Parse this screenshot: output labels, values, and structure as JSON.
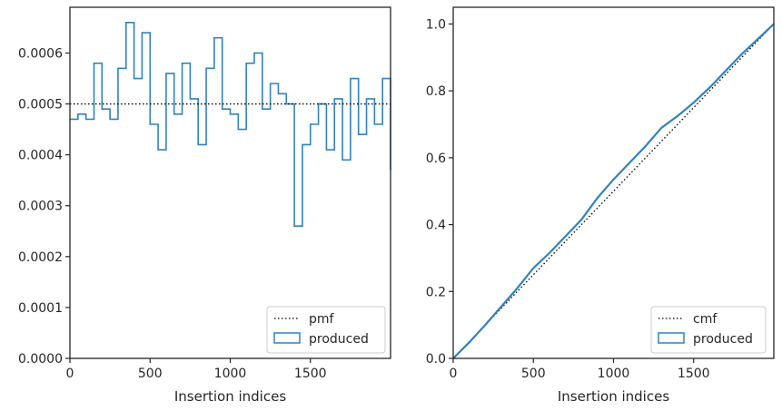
{
  "chart_data": [
    {
      "type": "step",
      "xlabel": "Insertion indices",
      "ylabel": "",
      "xlim": [
        0,
        2000
      ],
      "ylim": [
        0,
        0.00069
      ],
      "xticks": [
        0,
        500,
        1000,
        1500
      ],
      "xtick_labels": [
        "0",
        "500",
        "1000",
        "1500"
      ],
      "yticks": [
        0,
        0.0001,
        0.0002,
        0.0003,
        0.0004,
        0.0005,
        0.0006
      ],
      "ytick_labels": [
        "0.0000",
        "0.0001",
        "0.0002",
        "0.0003",
        "0.0004",
        "0.0005",
        "0.0006"
      ],
      "reference": {
        "name": "pmf",
        "style": "dotted",
        "color": "#000000",
        "value": 0.0005
      },
      "series": [
        {
          "name": "produced",
          "color": "#3182bd",
          "bin_width": 50,
          "bin_edges_start": 0,
          "values": [
            0.00047,
            0.00048,
            0.00047,
            0.00058,
            0.00049,
            0.00047,
            0.00057,
            0.00066,
            0.00055,
            0.00064,
            0.00046,
            0.00041,
            0.00056,
            0.00048,
            0.00058,
            0.00051,
            0.00042,
            0.00057,
            0.00063,
            0.00049,
            0.00048,
            0.00045,
            0.00058,
            0.0006,
            0.00049,
            0.00054,
            0.00052,
            0.0005,
            0.00026,
            0.00042,
            0.00046,
            0.0005,
            0.00041,
            0.00051,
            0.00039,
            0.00055,
            0.00044,
            0.00051,
            0.00046,
            0.00055,
            0.00037
          ]
        }
      ],
      "legend": {
        "placement": "lower-right",
        "entries": [
          "pmf",
          "produced"
        ]
      }
    },
    {
      "type": "line",
      "xlabel": "Insertion indices",
      "ylabel": "",
      "xlim": [
        0,
        2000
      ],
      "ylim": [
        0,
        1.05
      ],
      "xticks": [
        0,
        500,
        1000,
        1500
      ],
      "xtick_labels": [
        "0",
        "500",
        "1000",
        "1500"
      ],
      "yticks": [
        0,
        0.2,
        0.4,
        0.6,
        0.8,
        1.0
      ],
      "ytick_labels": [
        "0.0",
        "0.2",
        "0.4",
        "0.6",
        "0.8",
        "1.0"
      ],
      "reference": {
        "name": "cmf",
        "style": "dotted",
        "color": "#000000",
        "x": [
          0,
          2000
        ],
        "y": [
          0,
          1.0
        ]
      },
      "series": [
        {
          "name": "produced",
          "color": "#3182bd",
          "x": [
            0,
            100,
            200,
            300,
            400,
            500,
            600,
            700,
            800,
            900,
            1000,
            1100,
            1200,
            1300,
            1400,
            1500,
            1600,
            1700,
            1800,
            1900,
            2000
          ],
          "y": [
            0,
            0.048,
            0.1,
            0.155,
            0.21,
            0.27,
            0.315,
            0.365,
            0.415,
            0.48,
            0.535,
            0.585,
            0.635,
            0.69,
            0.725,
            0.765,
            0.81,
            0.86,
            0.91,
            0.955,
            1.0
          ]
        }
      ],
      "legend": {
        "placement": "lower-right",
        "entries": [
          "cmf",
          "produced"
        ]
      }
    }
  ]
}
